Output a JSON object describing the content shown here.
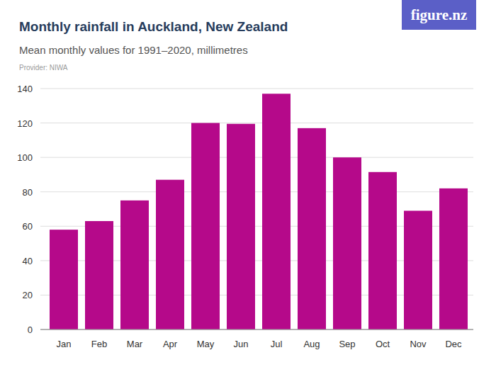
{
  "chart_data": {
    "type": "bar",
    "title": "Monthly rainfall in Auckland, New Zealand",
    "subtitle": "Mean monthly values for 1991–2020, millimetres",
    "annotations": [
      "Provider: NIWA",
      "figure.nz"
    ],
    "categories": [
      "Jan",
      "Feb",
      "Mar",
      "Apr",
      "May",
      "Jun",
      "Jul",
      "Aug",
      "Sep",
      "Oct",
      "Nov",
      "Dec"
    ],
    "values": [
      58,
      63,
      75,
      87,
      120,
      119.5,
      137,
      117,
      100,
      91.5,
      69,
      82
    ],
    "color": "#b5098a",
    "ylim": [
      0,
      140
    ],
    "yticks": [
      0,
      20,
      40,
      60,
      80,
      100,
      120,
      140
    ],
    "grid": true
  }
}
